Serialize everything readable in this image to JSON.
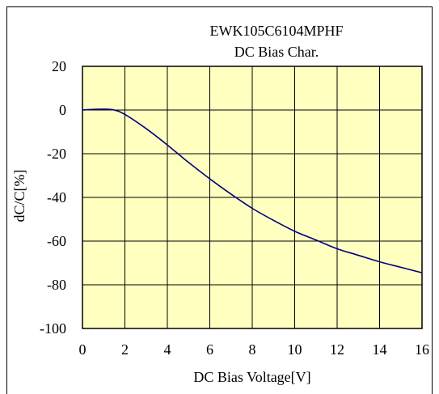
{
  "chart_data": {
    "type": "line",
    "title": "EWK105C6104MPHF",
    "subtitle": "DC Bias Char.",
    "xlabel": "DC Bias Voltage[V]",
    "ylabel": "dC/C[%]",
    "xlim": [
      0,
      16
    ],
    "ylim": [
      -100,
      20
    ],
    "xticks": [
      0,
      2,
      4,
      6,
      8,
      10,
      12,
      14,
      16
    ],
    "yticks": [
      20,
      0,
      -20,
      -40,
      -60,
      -80,
      -100
    ],
    "grid": true,
    "legend": "none",
    "colors": {
      "plot_background": "#FFFFC0",
      "grid": "#000000",
      "line": "#000080",
      "frame": "#000000"
    },
    "series": [
      {
        "x": [
          0,
          0.5,
          1,
          1.5,
          2,
          3,
          4,
          5,
          6,
          7,
          8,
          9,
          10,
          11,
          12,
          13,
          14,
          15,
          16
        ],
        "values": [
          0,
          0.3,
          0.4,
          0,
          -2,
          -8.5,
          -16,
          -24,
          -31.5,
          -38.5,
          -45,
          -50.5,
          -55.5,
          -59.5,
          -63.5,
          -66.5,
          -69.5,
          -72,
          -74.5
        ]
      }
    ]
  }
}
